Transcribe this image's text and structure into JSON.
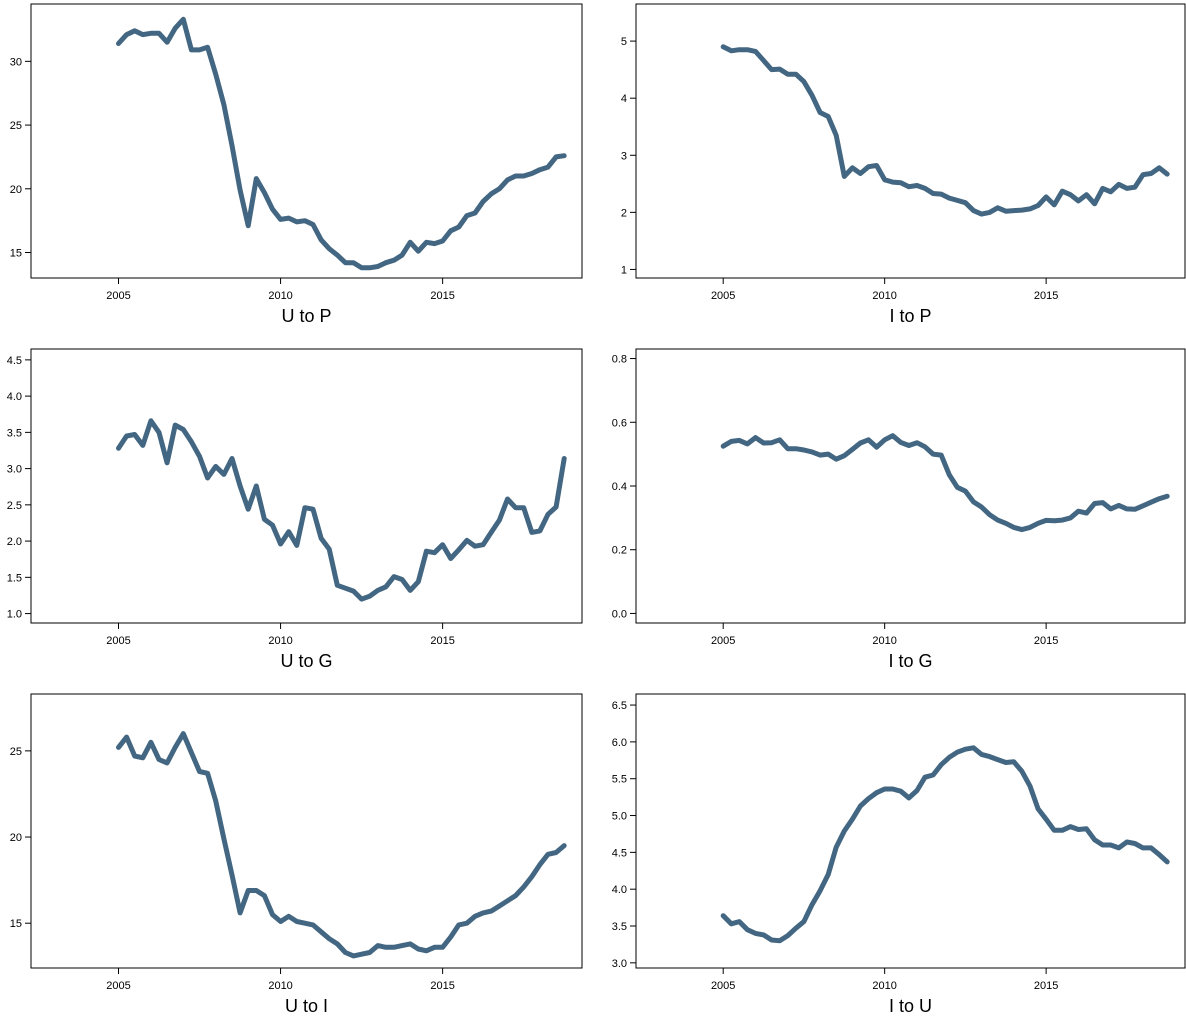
{
  "line_color": "#436782",
  "chart_data": [
    {
      "type": "line",
      "title": "U to P",
      "xlim": [
        2002.3,
        2019.3
      ],
      "ylim": [
        13.0,
        34.5
      ],
      "xticks": [
        2005,
        2010,
        2015
      ],
      "yticks": [
        15,
        20,
        25,
        30
      ],
      "x": [
        2005.0,
        2005.25,
        2005.5,
        2005.75,
        2006.0,
        2006.25,
        2006.5,
        2006.75,
        2007.0,
        2007.25,
        2007.5,
        2007.75,
        2008.0,
        2008.25,
        2008.5,
        2008.75,
        2009.0,
        2009.25,
        2009.5,
        2009.75,
        2010.0,
        2010.25,
        2010.5,
        2010.75,
        2011.0,
        2011.25,
        2011.5,
        2011.75,
        2012.0,
        2012.25,
        2012.5,
        2012.75,
        2013.0,
        2013.25,
        2013.5,
        2013.75,
        2014.0,
        2014.25,
        2014.5,
        2014.75,
        2015.0,
        2015.25,
        2015.5,
        2015.75,
        2016.0,
        2016.25,
        2016.5,
        2016.75,
        2017.0,
        2017.25,
        2017.5,
        2017.75,
        2018.0,
        2018.25,
        2018.5,
        2018.75
      ],
      "series": [
        {
          "values": [
            31.4,
            32.1,
            32.4,
            32.1,
            32.2,
            32.2,
            31.5,
            32.6,
            33.3,
            30.9,
            30.9,
            31.1,
            29.0,
            26.6,
            23.4,
            19.9,
            17.1,
            20.8,
            19.7,
            18.4,
            17.6,
            17.7,
            17.4,
            17.5,
            17.2,
            16.0,
            15.3,
            14.8,
            14.2,
            14.2,
            13.8,
            13.8,
            13.9,
            14.2,
            14.4,
            14.8,
            15.8,
            15.1,
            15.8,
            15.7,
            15.9,
            16.7,
            17.0,
            17.9,
            18.1,
            19.0,
            19.6,
            20.0,
            20.7,
            21.0,
            21.0,
            21.2,
            21.5,
            21.7,
            22.5,
            22.6
          ]
        }
      ]
    },
    {
      "type": "line",
      "title": "I to P",
      "xlim": [
        2002.3,
        2019.3
      ],
      "ylim": [
        0.85,
        5.65
      ],
      "xticks": [
        2005,
        2010,
        2015
      ],
      "yticks": [
        1,
        2,
        3,
        4,
        5
      ],
      "x": [
        2005.0,
        2005.25,
        2005.5,
        2005.75,
        2006.0,
        2006.25,
        2006.5,
        2006.75,
        2007.0,
        2007.25,
        2007.5,
        2007.75,
        2008.0,
        2008.25,
        2008.5,
        2008.75,
        2009.0,
        2009.25,
        2009.5,
        2009.75,
        2010.0,
        2010.25,
        2010.5,
        2010.75,
        2011.0,
        2011.25,
        2011.5,
        2011.75,
        2012.0,
        2012.25,
        2012.5,
        2012.75,
        2013.0,
        2013.25,
        2013.5,
        2013.75,
        2014.0,
        2014.25,
        2014.5,
        2014.75,
        2015.0,
        2015.25,
        2015.5,
        2015.75,
        2016.0,
        2016.25,
        2016.5,
        2016.75,
        2017.0,
        2017.25,
        2017.5,
        2017.75,
        2018.0,
        2018.25,
        2018.5,
        2018.75
      ],
      "series": [
        {
          "values": [
            4.9,
            4.83,
            4.85,
            4.85,
            4.82,
            4.66,
            4.5,
            4.51,
            4.42,
            4.42,
            4.29,
            4.05,
            3.75,
            3.68,
            3.35,
            2.63,
            2.78,
            2.68,
            2.8,
            2.82,
            2.57,
            2.53,
            2.52,
            2.45,
            2.47,
            2.42,
            2.33,
            2.32,
            2.25,
            2.21,
            2.17,
            2.03,
            1.97,
            2.0,
            2.08,
            2.02,
            2.03,
            2.04,
            2.06,
            2.12,
            2.27,
            2.13,
            2.37,
            2.31,
            2.2,
            2.31,
            2.15,
            2.42,
            2.36,
            2.49,
            2.42,
            2.44,
            2.66,
            2.68,
            2.78,
            2.67
          ]
        }
      ]
    },
    {
      "type": "line",
      "title": "U to G",
      "xlim": [
        2002.3,
        2019.3
      ],
      "ylim": [
        0.87,
        4.65
      ],
      "xticks": [
        2005,
        2010,
        2015
      ],
      "yticks": [
        "1.0",
        "1.5",
        "2.0",
        "2.5",
        "3.0",
        "3.5",
        "4.0",
        "4.5"
      ],
      "x": [
        2005.0,
        2005.25,
        2005.5,
        2005.75,
        2006.0,
        2006.25,
        2006.5,
        2006.75,
        2007.0,
        2007.25,
        2007.5,
        2007.75,
        2008.0,
        2008.25,
        2008.5,
        2008.75,
        2009.0,
        2009.25,
        2009.5,
        2009.75,
        2010.0,
        2010.25,
        2010.5,
        2010.75,
        2011.0,
        2011.25,
        2011.5,
        2011.75,
        2012.0,
        2012.25,
        2012.5,
        2012.75,
        2013.0,
        2013.25,
        2013.5,
        2013.75,
        2014.0,
        2014.25,
        2014.5,
        2014.75,
        2015.0,
        2015.25,
        2015.5,
        2015.75,
        2016.0,
        2016.25,
        2016.5,
        2016.75,
        2017.0,
        2017.25,
        2017.5,
        2017.75,
        2018.0,
        2018.25,
        2018.5,
        2018.75
      ],
      "series": [
        {
          "values": [
            3.28,
            3.45,
            3.47,
            3.32,
            3.66,
            3.5,
            3.08,
            3.6,
            3.54,
            3.37,
            3.17,
            2.87,
            3.03,
            2.92,
            3.14,
            2.76,
            2.44,
            2.76,
            2.3,
            2.22,
            1.96,
            2.13,
            1.94,
            2.46,
            2.44,
            2.04,
            1.89,
            1.39,
            1.35,
            1.31,
            1.2,
            1.24,
            1.32,
            1.37,
            1.51,
            1.47,
            1.32,
            1.44,
            1.86,
            1.84,
            1.95,
            1.76,
            1.88,
            2.01,
            1.93,
            1.95,
            2.12,
            2.29,
            2.58,
            2.46,
            2.46,
            2.12,
            2.14,
            2.37,
            2.47,
            3.14
          ]
        }
      ]
    },
    {
      "type": "line",
      "title": "I to G",
      "xlim": [
        2002.3,
        2019.3
      ],
      "ylim": [
        -0.03,
        0.83
      ],
      "xticks": [
        2005,
        2010,
        2015
      ],
      "yticks": [
        "0.0",
        "0.2",
        "0.4",
        "0.6",
        "0.8"
      ],
      "x": [
        2005.0,
        2005.25,
        2005.5,
        2005.75,
        2006.0,
        2006.25,
        2006.5,
        2006.75,
        2007.0,
        2007.25,
        2007.5,
        2007.75,
        2008.0,
        2008.25,
        2008.5,
        2008.75,
        2009.0,
        2009.25,
        2009.5,
        2009.75,
        2010.0,
        2010.25,
        2010.5,
        2010.75,
        2011.0,
        2011.25,
        2011.5,
        2011.75,
        2012.0,
        2012.25,
        2012.5,
        2012.75,
        2013.0,
        2013.25,
        2013.5,
        2013.75,
        2014.0,
        2014.25,
        2014.5,
        2014.75,
        2015.0,
        2015.25,
        2015.5,
        2015.75,
        2016.0,
        2016.25,
        2016.5,
        2016.75,
        2017.0,
        2017.25,
        2017.5,
        2017.75,
        2018.0,
        2018.25,
        2018.5,
        2018.75
      ],
      "series": [
        {
          "values": [
            0.525,
            0.54,
            0.543,
            0.532,
            0.552,
            0.535,
            0.536,
            0.545,
            0.517,
            0.517,
            0.513,
            0.507,
            0.497,
            0.5,
            0.484,
            0.495,
            0.515,
            0.535,
            0.545,
            0.522,
            0.545,
            0.558,
            0.537,
            0.527,
            0.536,
            0.523,
            0.5,
            0.497,
            0.435,
            0.396,
            0.384,
            0.35,
            0.334,
            0.31,
            0.293,
            0.283,
            0.27,
            0.263,
            0.27,
            0.283,
            0.292,
            0.291,
            0.293,
            0.3,
            0.321,
            0.315,
            0.345,
            0.348,
            0.328,
            0.339,
            0.328,
            0.327,
            0.338,
            0.349,
            0.36,
            0.368
          ]
        }
      ]
    },
    {
      "type": "line",
      "title": "U to I",
      "xlim": [
        2002.3,
        2019.3
      ],
      "ylim": [
        12.4,
        28.3
      ],
      "xticks": [
        2005,
        2010,
        2015
      ],
      "yticks": [
        15,
        20,
        25
      ],
      "x": [
        2005.0,
        2005.25,
        2005.5,
        2005.75,
        2006.0,
        2006.25,
        2006.5,
        2006.75,
        2007.0,
        2007.25,
        2007.5,
        2007.75,
        2008.0,
        2008.25,
        2008.5,
        2008.75,
        2009.0,
        2009.25,
        2009.5,
        2009.75,
        2010.0,
        2010.25,
        2010.5,
        2010.75,
        2011.0,
        2011.25,
        2011.5,
        2011.75,
        2012.0,
        2012.25,
        2012.5,
        2012.75,
        2013.0,
        2013.25,
        2013.5,
        2013.75,
        2014.0,
        2014.25,
        2014.5,
        2014.75,
        2015.0,
        2015.25,
        2015.5,
        2015.75,
        2016.0,
        2016.25,
        2016.5,
        2016.75,
        2017.0,
        2017.25,
        2017.5,
        2017.75,
        2018.0,
        2018.25,
        2018.5,
        2018.75
      ],
      "series": [
        {
          "values": [
            25.2,
            25.8,
            24.7,
            24.6,
            25.5,
            24.5,
            24.3,
            25.2,
            26.0,
            24.9,
            23.8,
            23.7,
            22.1,
            19.9,
            17.8,
            15.6,
            16.9,
            16.9,
            16.6,
            15.5,
            15.1,
            15.4,
            15.1,
            15.0,
            14.9,
            14.5,
            14.1,
            13.8,
            13.3,
            13.1,
            13.2,
            13.3,
            13.7,
            13.6,
            13.6,
            13.7,
            13.8,
            13.5,
            13.4,
            13.6,
            13.6,
            14.2,
            14.9,
            15.0,
            15.4,
            15.6,
            15.7,
            16.0,
            16.3,
            16.6,
            17.1,
            17.7,
            18.4,
            19.0,
            19.1,
            19.5
          ]
        }
      ]
    },
    {
      "type": "line",
      "title": "I to U",
      "xlim": [
        2002.3,
        2019.3
      ],
      "ylim": [
        2.93,
        6.65
      ],
      "xticks": [
        2005,
        2010,
        2015
      ],
      "yticks": [
        "3.0",
        "3.5",
        "4.0",
        "4.5",
        "5.0",
        "5.5",
        "6.0",
        "6.5"
      ],
      "x": [
        2005.0,
        2005.25,
        2005.5,
        2005.75,
        2006.0,
        2006.25,
        2006.5,
        2006.75,
        2007.0,
        2007.25,
        2007.5,
        2007.75,
        2008.0,
        2008.25,
        2008.5,
        2008.75,
        2009.0,
        2009.25,
        2009.5,
        2009.75,
        2010.0,
        2010.25,
        2010.5,
        2010.75,
        2011.0,
        2011.25,
        2011.5,
        2011.75,
        2012.0,
        2012.25,
        2012.5,
        2012.75,
        2013.0,
        2013.25,
        2013.5,
        2013.75,
        2014.0,
        2014.25,
        2014.5,
        2014.75,
        2015.0,
        2015.25,
        2015.5,
        2015.75,
        2016.0,
        2016.25,
        2016.5,
        2016.75,
        2017.0,
        2017.25,
        2017.5,
        2017.75,
        2018.0,
        2018.25,
        2018.5,
        2018.75
      ],
      "series": [
        {
          "values": [
            3.64,
            3.53,
            3.56,
            3.45,
            3.4,
            3.38,
            3.31,
            3.3,
            3.37,
            3.47,
            3.56,
            3.79,
            3.98,
            4.2,
            4.57,
            4.79,
            4.95,
            5.13,
            5.23,
            5.31,
            5.36,
            5.36,
            5.33,
            5.24,
            5.34,
            5.52,
            5.55,
            5.69,
            5.79,
            5.86,
            5.9,
            5.92,
            5.83,
            5.8,
            5.76,
            5.72,
            5.73,
            5.6,
            5.4,
            5.09,
            4.95,
            4.8,
            4.8,
            4.85,
            4.81,
            4.82,
            4.67,
            4.6,
            4.6,
            4.56,
            4.64,
            4.62,
            4.56,
            4.56,
            4.47,
            4.37
          ]
        }
      ]
    }
  ]
}
